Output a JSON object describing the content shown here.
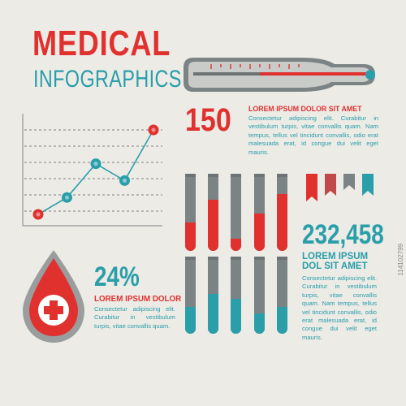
{
  "title": {
    "main": "MEDICAL",
    "sub": "INFOGRAPHICS"
  },
  "colors": {
    "red": "#e0312f",
    "teal": "#2a9ea9",
    "gray": "#7c8384",
    "background": "#ecebe6"
  },
  "stat1": {
    "value": "150",
    "heading": "LOREM IPSUM DOLOR SIT AMET",
    "text": "Consectetur adipiscing elit. Curabitur in vestibulum turpis, vitae convallis quam. Nam tempus, tellus vel tincidunt convallis, odio erat malesuada erat, id congue dui velit eget mauris."
  },
  "stat2": {
    "value": "24%",
    "heading": "LOREM IPSUM DOLOR",
    "text": "Consectetur adipiscing elit. Curabitur in vestibulum turpis, vitae convallis quam."
  },
  "stat3": {
    "value": "232,458",
    "heading": "LOREM IPSUM DOL SIT AMET",
    "text": "Consectetur adipiscing elit. Curabitur in vestibulum turpis, vitae convallis quam. Nam tempus, tellus vel tincidunt convallis, odio erat malesuada erat, id congue dui velit eget mauris."
  },
  "tubes": {
    "top_fill": [
      0.38,
      0.69,
      0.16,
      0.51,
      0.77
    ],
    "bottom_fill": [
      0.36,
      0.54,
      0.47,
      0.28,
      0.36
    ]
  },
  "line_points": [
    {
      "x": 0,
      "y": 0
    },
    {
      "x": 1,
      "y": 1
    },
    {
      "x": 2,
      "y": 3
    },
    {
      "x": 3,
      "y": 2
    },
    {
      "x": 4,
      "y": 5
    }
  ],
  "line_point_colors": [
    "red",
    "teal",
    "teal",
    "teal",
    "red"
  ],
  "bookmark_colors": [
    "red",
    "red",
    "gray",
    "teal"
  ],
  "watermark": "114102799",
  "icons": [
    "thermometer-icon",
    "blood-drop-icon",
    "medical-cross-icon"
  ]
}
